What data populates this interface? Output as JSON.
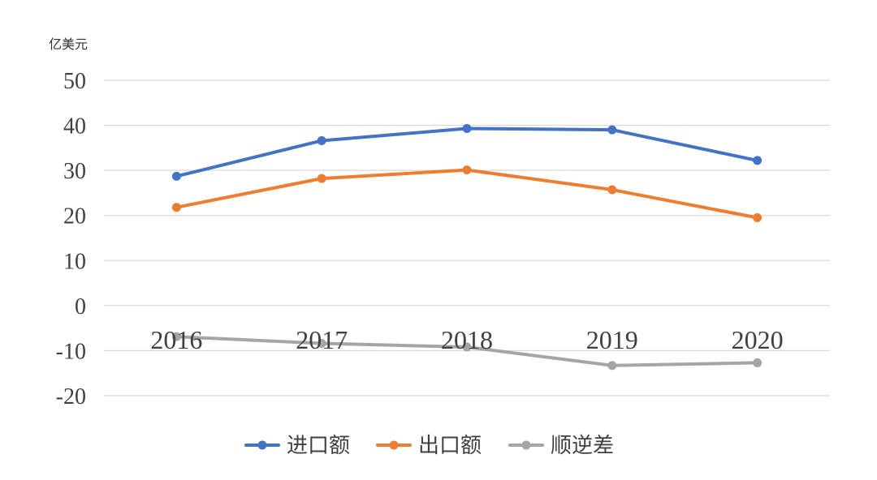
{
  "chart_data": {
    "type": "line",
    "unit_label": "亿美元",
    "x": [
      "2016",
      "2017",
      "2018",
      "2019",
      "2020"
    ],
    "ylim": [
      -20,
      50
    ],
    "yticks": [
      50,
      40,
      30,
      20,
      10,
      0,
      -10,
      -20
    ],
    "grid": true,
    "legend_position": "bottom",
    "series": [
      {
        "name": "进口额",
        "color": "#4472c4",
        "values": [
          28.7,
          36.6,
          39.3,
          39.0,
          32.2
        ]
      },
      {
        "name": "出口额",
        "color": "#ed7d31",
        "values": [
          21.8,
          28.2,
          30.1,
          25.7,
          19.5
        ]
      },
      {
        "name": "顺逆差",
        "color": "#a5a5a5",
        "values": [
          -6.9,
          -8.4,
          -9.2,
          -13.3,
          -12.7
        ]
      }
    ]
  }
}
